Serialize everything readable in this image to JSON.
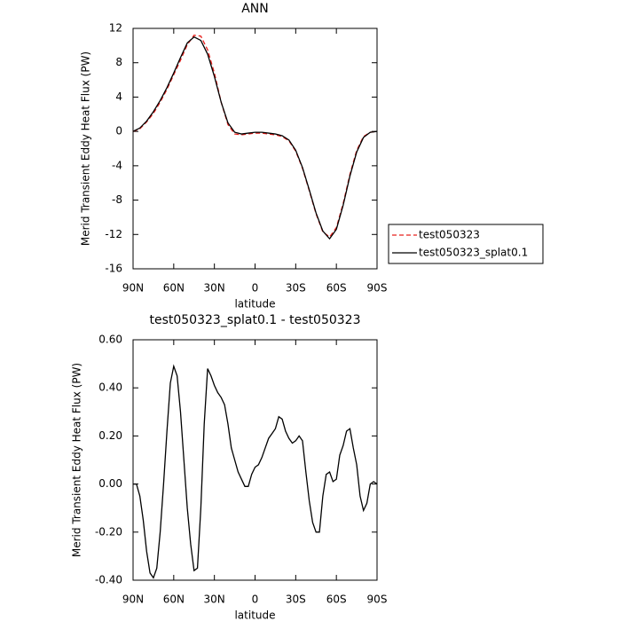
{
  "chart_data": [
    {
      "type": "line",
      "title": "ANN",
      "xlabel": "latitude",
      "ylabel": "Merid Transient Eddy Heat Flux (PW)",
      "x": [
        90,
        85,
        80,
        75,
        70,
        65,
        60,
        55,
        50,
        45,
        40,
        35,
        30,
        25,
        20,
        15,
        10,
        5,
        0,
        -5,
        -10,
        -15,
        -20,
        -25,
        -30,
        -35,
        -40,
        -45,
        -50,
        -55,
        -60,
        -65,
        -70,
        -75,
        -80,
        -85,
        -90
      ],
      "series": [
        {
          "name": "test050323",
          "color": "#e8201c",
          "dashed": true,
          "values": [
            0,
            0.3,
            1.1,
            2.1,
            3.4,
            4.9,
            6.6,
            8.3,
            10.1,
            11.2,
            11.1,
            9.5,
            6.8,
            3.4,
            0.8,
            -0.3,
            -0.4,
            -0.3,
            -0.2,
            -0.2,
            -0.3,
            -0.4,
            -0.6,
            -1.1,
            -2.3,
            -4.3,
            -6.9,
            -9.6,
            -11.7,
            -12.3,
            -11.2,
            -8.4,
            -5.0,
            -2.2,
            -0.6,
            -0.1,
            0
          ]
        },
        {
          "name": "test050323_splat0.1",
          "color": "#000000",
          "dashed": false,
          "values": [
            0,
            0.4,
            1.2,
            2.3,
            3.6,
            5.1,
            6.8,
            8.6,
            10.3,
            11.0,
            10.6,
            9.0,
            6.4,
            3.4,
            1.0,
            -0.1,
            -0.3,
            -0.2,
            -0.1,
            -0.1,
            -0.2,
            -0.3,
            -0.5,
            -1.0,
            -2.2,
            -4.2,
            -6.8,
            -9.5,
            -11.6,
            -12.5,
            -11.4,
            -8.6,
            -5.2,
            -2.4,
            -0.7,
            -0.1,
            0
          ]
        }
      ],
      "xlim": [
        90,
        -90
      ],
      "xticks": [
        {
          "value": 90,
          "label": "90N"
        },
        {
          "value": 60,
          "label": "60N"
        },
        {
          "value": 30,
          "label": "30N"
        },
        0,
        {
          "value": -30,
          "label": "30S"
        },
        {
          "value": -60,
          "label": "60S"
        },
        {
          "value": -90,
          "label": "90S"
        }
      ],
      "ylim": [
        -16,
        12
      ],
      "yticks": [
        12,
        8,
        4,
        0,
        -4,
        -8,
        -12,
        -16
      ],
      "legend": "right"
    },
    {
      "type": "line",
      "title": "test050323_splat0.1 - test050323",
      "xlabel": "latitude",
      "ylabel": "Merid Transient Eddy Heat Flux (PW)",
      "x": [
        90,
        87.5,
        85,
        82.5,
        80,
        77.5,
        75,
        72.5,
        70,
        67.5,
        65,
        62.5,
        60,
        57.5,
        55,
        52.5,
        50,
        47.5,
        45,
        42.5,
        40,
        37.5,
        35,
        32.5,
        30,
        27.5,
        25,
        22.5,
        20,
        17.5,
        15,
        12.5,
        10,
        7.5,
        5,
        2.5,
        0,
        -2.5,
        -5,
        -7.5,
        -10,
        -12.5,
        -15,
        -17.5,
        -20,
        -22.5,
        -25,
        -27.5,
        -30,
        -32.5,
        -35,
        -37.5,
        -40,
        -42.5,
        -45,
        -47.5,
        -50,
        -52.5,
        -55,
        -57.5,
        -60,
        -62.5,
        -65,
        -67.5,
        -70,
        -72.5,
        -75,
        -77.5,
        -80,
        -82.5,
        -85,
        -87.5,
        -90
      ],
      "values": [
        0.0,
        0.0,
        -0.05,
        -0.15,
        -0.28,
        -0.37,
        -0.39,
        -0.35,
        -0.2,
        0.0,
        0.22,
        0.42,
        0.49,
        0.45,
        0.3,
        0.1,
        -0.1,
        -0.25,
        -0.36,
        -0.35,
        -0.1,
        0.25,
        0.48,
        0.45,
        0.41,
        0.38,
        0.36,
        0.33,
        0.25,
        0.15,
        0.1,
        0.05,
        0.02,
        -0.01,
        -0.01,
        0.04,
        0.07,
        0.08,
        0.11,
        0.15,
        0.19,
        0.21,
        0.23,
        0.28,
        0.27,
        0.22,
        0.19,
        0.17,
        0.18,
        0.2,
        0.18,
        0.05,
        -0.07,
        -0.16,
        -0.2,
        -0.2,
        -0.05,
        0.04,
        0.05,
        0.01,
        0.02,
        0.12,
        0.16,
        0.22,
        0.23,
        0.15,
        0.08,
        -0.05,
        -0.11,
        -0.08,
        0.0,
        0.01,
        0.0
      ],
      "color": "#000000",
      "xlim": [
        90,
        -90
      ],
      "xticks": [
        {
          "value": 90,
          "label": "90N"
        },
        {
          "value": 60,
          "label": "60N"
        },
        {
          "value": 30,
          "label": "30N"
        },
        0,
        {
          "value": -30,
          "label": "30S"
        },
        {
          "value": -60,
          "label": "60S"
        },
        {
          "value": -90,
          "label": "90S"
        }
      ],
      "ylim": [
        -0.4,
        0.6
      ],
      "yticks": [
        {
          "value": 0.6,
          "label": "0.60"
        },
        {
          "value": 0.4,
          "label": "0.40"
        },
        {
          "value": 0.2,
          "label": "0.20"
        },
        {
          "value": 0,
          "label": "0.00"
        },
        {
          "value": -0.2,
          "label": "-0.20"
        },
        {
          "value": -0.4,
          "label": "-0.40"
        }
      ]
    }
  ]
}
